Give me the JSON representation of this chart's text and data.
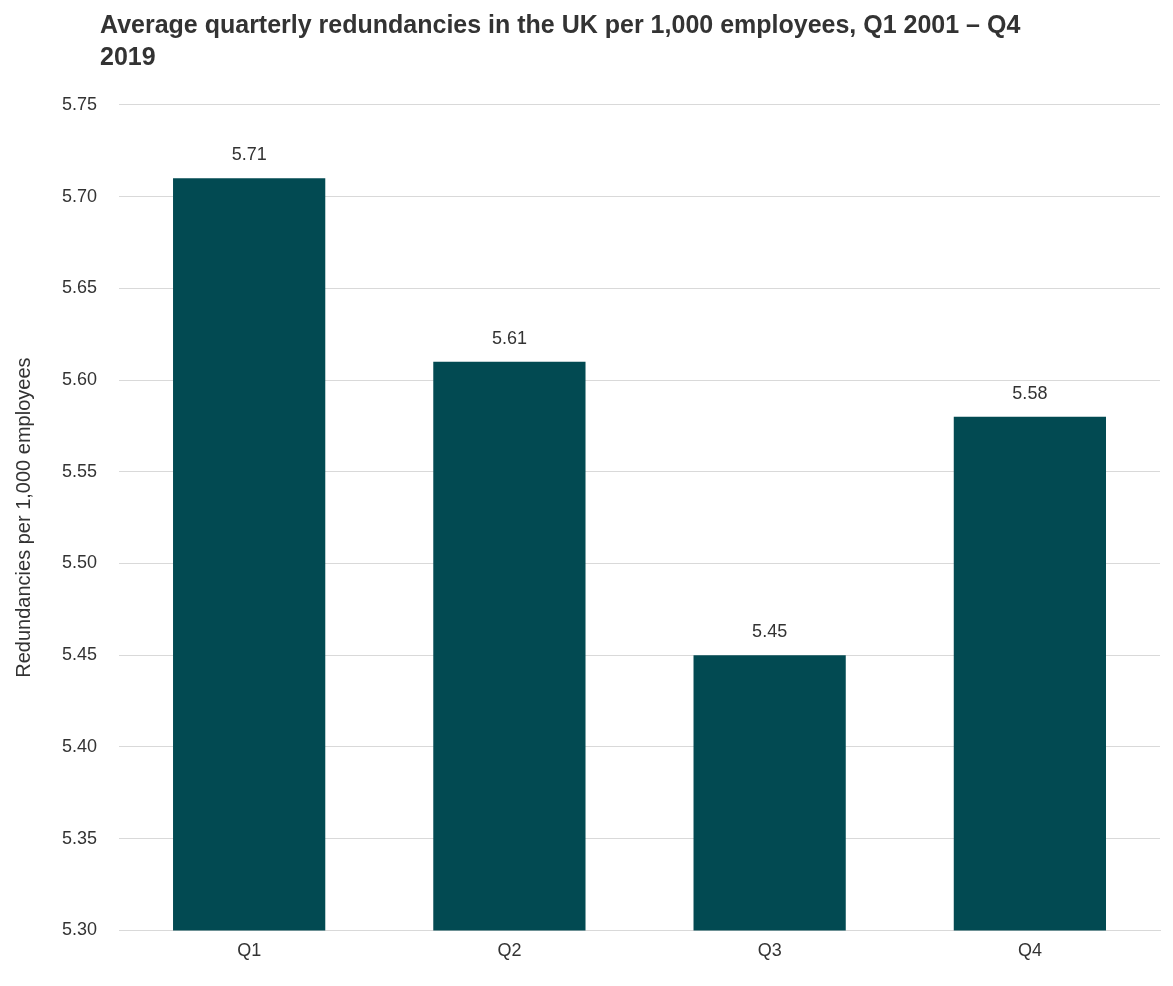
{
  "chart_data": {
    "type": "bar",
    "title": "Average quarterly redundancies in the UK per 1,000 employees, Q1 2001 – Q4 2019",
    "ylabel": "Redundancies per 1,000 employees",
    "categories": [
      "Q1",
      "Q2",
      "Q3",
      "Q4"
    ],
    "values": [
      5.71,
      5.61,
      5.45,
      5.58
    ],
    "color": "#024a52",
    "ylim": [
      5.3,
      5.75
    ],
    "yticks": [
      {
        "value": 5.3,
        "label": "5.30"
      },
      {
        "value": 5.35,
        "label": "5.35"
      },
      {
        "value": 5.4,
        "label": "5.40"
      },
      {
        "value": 5.45,
        "label": "5.45"
      },
      {
        "value": 5.5,
        "label": "5.50"
      },
      {
        "value": 5.55,
        "label": "5.55"
      },
      {
        "value": 5.6,
        "label": "5.60"
      },
      {
        "value": 5.65,
        "label": "5.65"
      },
      {
        "value": 5.7,
        "label": "5.70"
      },
      {
        "value": 5.75,
        "label": "5.75"
      }
    ],
    "grid": "y",
    "data_labels": true,
    "legend": false
  }
}
